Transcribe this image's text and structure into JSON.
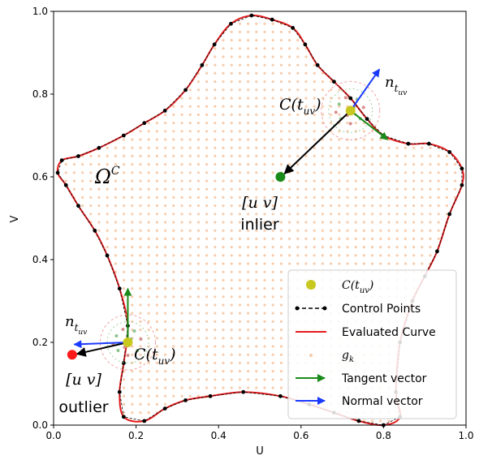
{
  "chart_data": {
    "type": "scatter",
    "xlabel": "U",
    "ylabel": "V",
    "xlim": [
      0.0,
      1.0
    ],
    "ylim": [
      0.0,
      1.0
    ],
    "xticks": [
      "0.0",
      "0.2",
      "0.4",
      "0.6",
      "0.8",
      "1.0"
    ],
    "yticks": [
      "0.0",
      "0.2",
      "0.4",
      "0.6",
      "0.8",
      "1.0"
    ],
    "grid": false,
    "legend_position": "bottom-right",
    "legend": [
      {
        "label": "C(t_uv)",
        "color": "#c8c81e",
        "marker": "circle"
      },
      {
        "label": "Control Points",
        "color": "#000000",
        "marker": "line-dot"
      },
      {
        "label": "Evaluated Curve",
        "color": "#e31a1c",
        "marker": "line"
      },
      {
        "label": "g_k",
        "color": "#f4c9a8",
        "marker": "small-dot"
      },
      {
        "label": "Tangent vector",
        "color": "#1a8a1a",
        "marker": "arrow"
      },
      {
        "label": "Normal vector",
        "color": "#1a3aff",
        "marker": "arrow"
      }
    ],
    "control_points": [
      [
        0.84,
        0.02
      ],
      [
        0.83,
        0.08
      ],
      [
        0.84,
        0.2
      ],
      [
        0.87,
        0.3
      ],
      [
        0.9,
        0.36
      ],
      [
        0.93,
        0.42
      ],
      [
        0.96,
        0.51
      ],
      [
        0.99,
        0.58
      ],
      [
        0.99,
        0.62
      ],
      [
        0.96,
        0.66
      ],
      [
        0.91,
        0.68
      ],
      [
        0.86,
        0.68
      ],
      [
        0.8,
        0.7
      ],
      [
        0.76,
        0.74
      ],
      [
        0.72,
        0.79
      ],
      [
        0.68,
        0.83
      ],
      [
        0.64,
        0.87
      ],
      [
        0.61,
        0.92
      ],
      [
        0.58,
        0.96
      ],
      [
        0.53,
        0.98
      ],
      [
        0.48,
        0.99
      ],
      [
        0.43,
        0.97
      ],
      [
        0.39,
        0.92
      ],
      [
        0.36,
        0.87
      ],
      [
        0.32,
        0.81
      ],
      [
        0.27,
        0.76
      ],
      [
        0.22,
        0.73
      ],
      [
        0.17,
        0.7
      ],
      [
        0.11,
        0.67
      ],
      [
        0.06,
        0.65
      ],
      [
        0.02,
        0.64
      ],
      [
        0.01,
        0.61
      ],
      [
        0.03,
        0.58
      ],
      [
        0.06,
        0.53
      ],
      [
        0.1,
        0.47
      ],
      [
        0.13,
        0.41
      ],
      [
        0.16,
        0.33
      ],
      [
        0.18,
        0.24
      ],
      [
        0.17,
        0.15
      ],
      [
        0.16,
        0.08
      ],
      [
        0.17,
        0.02
      ],
      [
        0.22,
        0.01
      ],
      [
        0.27,
        0.04
      ],
      [
        0.32,
        0.06
      ],
      [
        0.38,
        0.07
      ],
      [
        0.46,
        0.08
      ],
      [
        0.55,
        0.07
      ],
      [
        0.62,
        0.05
      ],
      [
        0.68,
        0.03
      ],
      [
        0.74,
        0.01
      ],
      [
        0.8,
        0.0
      ]
    ],
    "inlier": {
      "uv": [
        0.55,
        0.6
      ],
      "curve_point": [
        0.72,
        0.76
      ],
      "tangent": [
        0.81,
        0.69
      ],
      "normal": [
        0.79,
        0.86
      ],
      "color": "#1a8a1a"
    },
    "outlier": {
      "uv": [
        0.045,
        0.17
      ],
      "curve_point": [
        0.18,
        0.2
      ],
      "tangent": [
        0.18,
        0.33
      ],
      "normal": [
        0.05,
        0.195
      ],
      "color": "#ff1a1a"
    },
    "annotations": {
      "omega": "Ω",
      "omega_sup": "C",
      "curve_label": "C(t",
      "uv_sub": "uv",
      "close_paren": ")",
      "n": "n",
      "t": "t",
      "uv_bracket": "[u v]",
      "inlier_word": "inlier",
      "outlier_word": "outlier"
    }
  }
}
